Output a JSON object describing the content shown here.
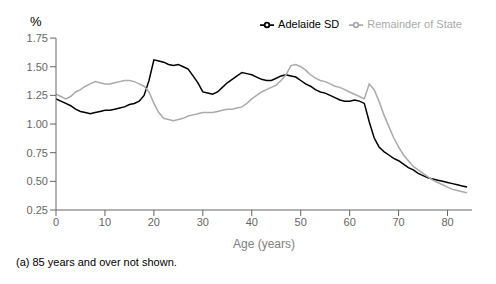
{
  "chart_data": {
    "type": "line",
    "xlabel": "Age (years)",
    "ylabel": "%",
    "footnote": "(a) 85 years and over not shown.",
    "x": [
      0,
      1,
      2,
      3,
      4,
      5,
      6,
      7,
      8,
      9,
      10,
      11,
      12,
      13,
      14,
      15,
      16,
      17,
      18,
      19,
      20,
      21,
      22,
      23,
      24,
      25,
      26,
      27,
      28,
      29,
      30,
      31,
      32,
      33,
      34,
      35,
      36,
      37,
      38,
      39,
      40,
      41,
      42,
      43,
      44,
      45,
      46,
      47,
      48,
      49,
      50,
      51,
      52,
      53,
      54,
      55,
      56,
      57,
      58,
      59,
      60,
      61,
      62,
      63,
      64,
      65,
      66,
      67,
      68,
      69,
      70,
      71,
      72,
      73,
      74,
      75,
      76,
      77,
      78,
      79,
      80,
      81,
      82,
      83,
      84
    ],
    "series": [
      {
        "name": "Adelaide SD",
        "color": "#000000",
        "values": [
          1.22,
          1.2,
          1.18,
          1.16,
          1.13,
          1.11,
          1.1,
          1.09,
          1.1,
          1.11,
          1.12,
          1.12,
          1.13,
          1.14,
          1.15,
          1.17,
          1.18,
          1.2,
          1.25,
          1.38,
          1.56,
          1.55,
          1.54,
          1.52,
          1.51,
          1.52,
          1.5,
          1.48,
          1.42,
          1.36,
          1.28,
          1.27,
          1.26,
          1.28,
          1.32,
          1.36,
          1.39,
          1.42,
          1.45,
          1.44,
          1.43,
          1.41,
          1.39,
          1.38,
          1.38,
          1.4,
          1.42,
          1.43,
          1.42,
          1.41,
          1.38,
          1.35,
          1.33,
          1.3,
          1.28,
          1.27,
          1.25,
          1.23,
          1.21,
          1.2,
          1.2,
          1.21,
          1.2,
          1.18,
          1.02,
          0.88,
          0.8,
          0.76,
          0.73,
          0.7,
          0.68,
          0.65,
          0.62,
          0.6,
          0.57,
          0.55,
          0.53,
          0.52,
          0.51,
          0.5,
          0.49,
          0.48,
          0.47,
          0.46,
          0.45
        ]
      },
      {
        "name": "Remainder of State",
        "color": "#aaaaaa",
        "values": [
          1.26,
          1.24,
          1.22,
          1.24,
          1.28,
          1.3,
          1.33,
          1.35,
          1.37,
          1.36,
          1.35,
          1.35,
          1.36,
          1.37,
          1.38,
          1.38,
          1.37,
          1.35,
          1.33,
          1.28,
          1.18,
          1.1,
          1.05,
          1.04,
          1.03,
          1.04,
          1.05,
          1.07,
          1.08,
          1.09,
          1.1,
          1.1,
          1.1,
          1.11,
          1.12,
          1.13,
          1.13,
          1.14,
          1.15,
          1.18,
          1.22,
          1.25,
          1.28,
          1.3,
          1.32,
          1.34,
          1.38,
          1.43,
          1.51,
          1.52,
          1.5,
          1.47,
          1.43,
          1.4,
          1.38,
          1.37,
          1.35,
          1.33,
          1.32,
          1.3,
          1.28,
          1.26,
          1.24,
          1.22,
          1.35,
          1.3,
          1.2,
          1.08,
          0.98,
          0.88,
          0.8,
          0.73,
          0.68,
          0.63,
          0.6,
          0.57,
          0.54,
          0.51,
          0.49,
          0.47,
          0.45,
          0.43,
          0.42,
          0.41,
          0.4
        ]
      }
    ],
    "xlim": [
      0,
      85
    ],
    "xticks": [
      0,
      10,
      20,
      30,
      40,
      50,
      60,
      70,
      80
    ],
    "ylim": [
      0.25,
      1.75
    ],
    "yticks": [
      0.25,
      {
        "value": 0.5,
        "label": "0.50"
      },
      0.75,
      {
        "value": 1,
        "label": "1.00"
      },
      1.25,
      {
        "value": 1.5,
        "label": "1.50"
      },
      1.75
    ],
    "legend": "upper right",
    "grid": false
  }
}
